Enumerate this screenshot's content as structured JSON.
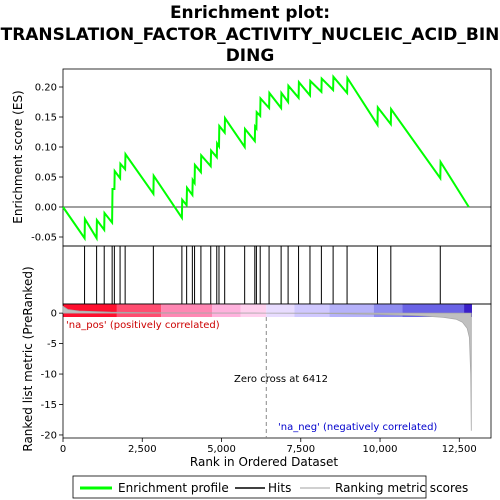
{
  "chart_data": {
    "type": "line",
    "title_line1": "Enrichment plot:",
    "title_line2": "TRANSLATION_FACTOR_ACTIVITY_NUCLEIC_ACID_BIN",
    "title_line3": "DING",
    "top_panel": {
      "ylabel": "Enrichment score (ES)",
      "ylim": [
        -0.065,
        0.23
      ],
      "yticks": [
        -0.05,
        0.0,
        0.05,
        0.1,
        0.15,
        0.2
      ],
      "ytick_labels": [
        "-0.05",
        "0.00",
        "0.05",
        "0.10",
        "0.15",
        "0.20"
      ],
      "es_profile": [
        [
          0,
          0.0
        ],
        [
          680,
          -0.052
        ],
        [
          690,
          -0.02
        ],
        [
          1060,
          -0.052
        ],
        [
          1070,
          -0.022
        ],
        [
          1300,
          -0.038
        ],
        [
          1310,
          -0.01
        ],
        [
          1550,
          -0.026
        ],
        [
          1560,
          0.03
        ],
        [
          1620,
          0.03
        ],
        [
          1630,
          0.06
        ],
        [
          1800,
          0.048
        ],
        [
          1810,
          0.072
        ],
        [
          1960,
          0.063
        ],
        [
          1970,
          0.088
        ],
        [
          2850,
          0.022
        ],
        [
          2860,
          0.052
        ],
        [
          3750,
          -0.018
        ],
        [
          3760,
          0.012
        ],
        [
          3900,
          0.003
        ],
        [
          3910,
          0.032
        ],
        [
          4080,
          0.02
        ],
        [
          4090,
          0.045
        ],
        [
          4150,
          0.04
        ],
        [
          4160,
          0.07
        ],
        [
          4350,
          0.058
        ],
        [
          4360,
          0.086
        ],
        [
          4660,
          0.068
        ],
        [
          4670,
          0.094
        ],
        [
          4850,
          0.083
        ],
        [
          4860,
          0.106
        ],
        [
          4920,
          0.101
        ],
        [
          4930,
          0.135
        ],
        [
          5100,
          0.124
        ],
        [
          5110,
          0.148
        ],
        [
          5730,
          0.1
        ],
        [
          5740,
          0.13
        ],
        [
          6050,
          0.11
        ],
        [
          6060,
          0.134
        ],
        [
          6100,
          0.131
        ],
        [
          6110,
          0.158
        ],
        [
          6220,
          0.152
        ],
        [
          6230,
          0.181
        ],
        [
          6500,
          0.165
        ],
        [
          6510,
          0.19
        ],
        [
          6880,
          0.165
        ],
        [
          6890,
          0.19
        ],
        [
          7100,
          0.175
        ],
        [
          7110,
          0.202
        ],
        [
          7430,
          0.182
        ],
        [
          7440,
          0.208
        ],
        [
          7790,
          0.186
        ],
        [
          7800,
          0.21
        ],
        [
          8150,
          0.192
        ],
        [
          8160,
          0.214
        ],
        [
          8520,
          0.195
        ],
        [
          8530,
          0.217
        ],
        [
          8960,
          0.19
        ],
        [
          8970,
          0.215
        ],
        [
          9920,
          0.137
        ],
        [
          9930,
          0.166
        ],
        [
          10340,
          0.138
        ],
        [
          10350,
          0.163
        ],
        [
          11900,
          0.048
        ],
        [
          11910,
          0.075
        ],
        [
          12800,
          0.0
        ]
      ]
    },
    "hits": [
      680,
      1060,
      1300,
      1550,
      1620,
      1800,
      1960,
      2850,
      3750,
      3900,
      4080,
      4150,
      4350,
      4660,
      4850,
      4920,
      5100,
      5730,
      6050,
      6100,
      6220,
      6500,
      6880,
      7100,
      7430,
      7790,
      8150,
      8520,
      8960,
      9920,
      10340,
      11900
    ],
    "color_band": [
      {
        "from": 0,
        "to": 1700,
        "color": "#ff0f2e"
      },
      {
        "from": 1700,
        "to": 3100,
        "color": "#ff4d70"
      },
      {
        "from": 3100,
        "to": 4700,
        "color": "#ff87b3"
      },
      {
        "from": 4700,
        "to": 5600,
        "color": "#ffb2dd"
      },
      {
        "from": 5600,
        "to": 6412,
        "color": "#ffd0ee"
      },
      {
        "from": 6412,
        "to": 7300,
        "color": "#e8dcff"
      },
      {
        "from": 7300,
        "to": 8400,
        "color": "#d0c8ff"
      },
      {
        "from": 8400,
        "to": 9800,
        "color": "#b6b2fa"
      },
      {
        "from": 9800,
        "to": 10700,
        "color": "#8f8cf0"
      },
      {
        "from": 10700,
        "to": 12650,
        "color": "#6a63e6"
      },
      {
        "from": 12650,
        "to": 12900,
        "color": "#3a1fc8"
      }
    ],
    "bottom_panel": {
      "ylabel": "Ranked list metric (PreRanked)",
      "ylim": [
        -20.5,
        1.5
      ],
      "yticks": [
        0,
        -5,
        -10,
        -15,
        -20
      ],
      "ytick_labels": [
        "0",
        "-5",
        "-10",
        "-15",
        "-20"
      ],
      "metric_curve": [
        [
          0,
          1.1
        ],
        [
          150,
          0.6
        ],
        [
          500,
          0.35
        ],
        [
          1500,
          0.15
        ],
        [
          3000,
          0.06
        ],
        [
          5000,
          0.02
        ],
        [
          6412,
          0.0
        ],
        [
          8000,
          -0.05
        ],
        [
          10000,
          -0.2
        ],
        [
          11200,
          -0.4
        ],
        [
          12000,
          -0.7
        ],
        [
          12400,
          -1.0
        ],
        [
          12600,
          -1.5
        ],
        [
          12750,
          -2.5
        ],
        [
          12820,
          -4
        ],
        [
          12860,
          -10
        ],
        [
          12880,
          -19.3
        ]
      ]
    },
    "xlabel": "Rank in Ordered Dataset",
    "xlim": [
      0,
      13500
    ],
    "xticks": [
      0,
      2500,
      5000,
      7500,
      10000,
      12500
    ],
    "xtick_labels": [
      "0",
      "2,500",
      "5,000",
      "7,500",
      "10,000",
      "12,500"
    ],
    "zero_cross": 6412,
    "annotations": {
      "pos_label": "'na_pos' (positively correlated)",
      "neg_label": "'na_neg' (negatively correlated)",
      "zero_cross_label": "Zero cross at 6412"
    },
    "legend": [
      {
        "label": "Enrichment profile",
        "color": "#00ff00"
      },
      {
        "label": "Hits",
        "color": "#000000"
      },
      {
        "label": "Ranking metric scores",
        "color": "#c0c0c0"
      }
    ],
    "colors": {
      "profile": "#00ff00",
      "hit": "#000000",
      "metric": "#c0c0c0",
      "pos_text": "#cc0000",
      "neg_text": "#0000cc",
      "zero_line": "#888888"
    }
  }
}
